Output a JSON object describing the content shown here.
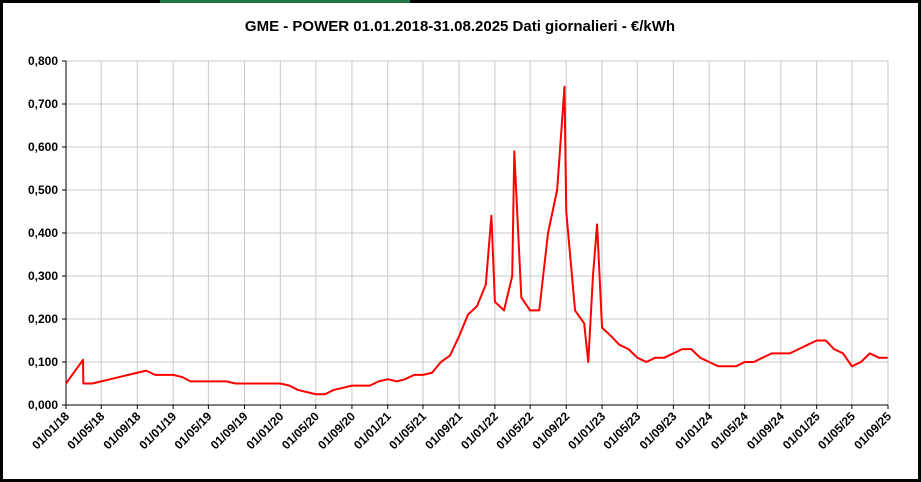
{
  "chart_data": {
    "type": "line",
    "title": "GME - POWER 01.01.2018-31.08.2025 Dati giornalieri - €/kWh",
    "x": [
      "01/01/18",
      "28/02/18",
      "01/03/18",
      "01/04/18",
      "01/05/18",
      "01/06/18",
      "01/07/18",
      "01/08/18",
      "01/09/18",
      "01/10/18",
      "01/11/18",
      "01/12/18",
      "01/01/19",
      "01/02/19",
      "01/03/19",
      "01/04/19",
      "01/05/19",
      "01/06/19",
      "01/07/19",
      "01/08/19",
      "01/09/19",
      "01/10/19",
      "01/11/19",
      "01/12/19",
      "01/01/20",
      "01/02/20",
      "01/03/20",
      "01/04/20",
      "01/05/20",
      "01/06/20",
      "01/07/20",
      "01/08/20",
      "01/09/20",
      "01/10/20",
      "01/11/20",
      "01/12/20",
      "01/01/21",
      "01/02/21",
      "01/03/21",
      "01/04/21",
      "01/05/21",
      "01/06/21",
      "01/07/21",
      "01/08/21",
      "01/09/21",
      "01/10/21",
      "01/11/21",
      "01/12/21",
      "20/12/21",
      "01/01/22",
      "01/02/22",
      "01/03/22",
      "08/03/22",
      "01/04/22",
      "01/05/22",
      "01/06/22",
      "01/07/22",
      "01/08/22",
      "26/08/22",
      "01/09/22",
      "01/10/22",
      "01/11/22",
      "15/11/22",
      "01/12/22",
      "15/12/22",
      "01/01/23",
      "01/02/23",
      "01/03/23",
      "01/04/23",
      "01/05/23",
      "01/06/23",
      "01/07/23",
      "01/08/23",
      "01/09/23",
      "01/10/23",
      "01/11/23",
      "01/12/23",
      "01/01/24",
      "01/02/24",
      "01/03/24",
      "01/04/24",
      "01/05/24",
      "01/06/24",
      "01/07/24",
      "01/08/24",
      "01/09/24",
      "01/10/24",
      "01/11/24",
      "01/12/24",
      "01/01/25",
      "01/02/25",
      "01/03/25",
      "01/04/25",
      "01/05/25",
      "01/06/25",
      "01/07/25",
      "01/08/25",
      "31/08/25"
    ],
    "values": [
      0.05,
      0.105,
      0.05,
      0.05,
      0.055,
      0.06,
      0.065,
      0.07,
      0.075,
      0.08,
      0.07,
      0.07,
      0.07,
      0.065,
      0.055,
      0.055,
      0.055,
      0.055,
      0.055,
      0.05,
      0.05,
      0.05,
      0.05,
      0.05,
      0.05,
      0.045,
      0.035,
      0.03,
      0.025,
      0.025,
      0.035,
      0.04,
      0.045,
      0.045,
      0.045,
      0.055,
      0.06,
      0.055,
      0.06,
      0.07,
      0.07,
      0.075,
      0.1,
      0.115,
      0.16,
      0.21,
      0.23,
      0.28,
      0.44,
      0.24,
      0.22,
      0.3,
      0.59,
      0.25,
      0.22,
      0.22,
      0.4,
      0.5,
      0.74,
      0.45,
      0.22,
      0.19,
      0.1,
      0.3,
      0.42,
      0.18,
      0.16,
      0.14,
      0.13,
      0.11,
      0.1,
      0.11,
      0.11,
      0.12,
      0.13,
      0.13,
      0.11,
      0.1,
      0.09,
      0.09,
      0.09,
      0.1,
      0.1,
      0.11,
      0.12,
      0.12,
      0.12,
      0.13,
      0.14,
      0.15,
      0.15,
      0.13,
      0.12,
      0.09,
      0.1,
      0.12,
      0.11,
      0.11
    ],
    "color": "#ff0000",
    "xlim": [
      "01/01/18",
      "01/09/25"
    ],
    "xticks": [
      "01/01/18",
      "01/05/18",
      "01/09/18",
      "01/01/19",
      "01/05/19",
      "01/09/19",
      "01/01/20",
      "01/05/20",
      "01/09/20",
      "01/01/21",
      "01/05/21",
      "01/09/21",
      "01/01/22",
      "01/05/22",
      "01/09/22",
      "01/01/23",
      "01/05/23",
      "01/09/23",
      "01/01/24",
      "01/05/24",
      "01/09/24",
      "01/01/25",
      "01/05/25",
      "01/09/25"
    ],
    "ylim": [
      0,
      0.8
    ],
    "yticks": [
      {
        "value": 0,
        "label": "0,000"
      },
      {
        "value": 0.1,
        "label": "0,100"
      },
      {
        "value": 0.2,
        "label": "0,200"
      },
      {
        "value": 0.3,
        "label": "0,300"
      },
      {
        "value": 0.4,
        "label": "0,400"
      },
      {
        "value": 0.5,
        "label": "0,500"
      },
      {
        "value": 0.6,
        "label": "0,600"
      },
      {
        "value": 0.7,
        "label": "0,700"
      },
      {
        "value": 0.8,
        "label": "0,800"
      }
    ],
    "grid": true
  }
}
